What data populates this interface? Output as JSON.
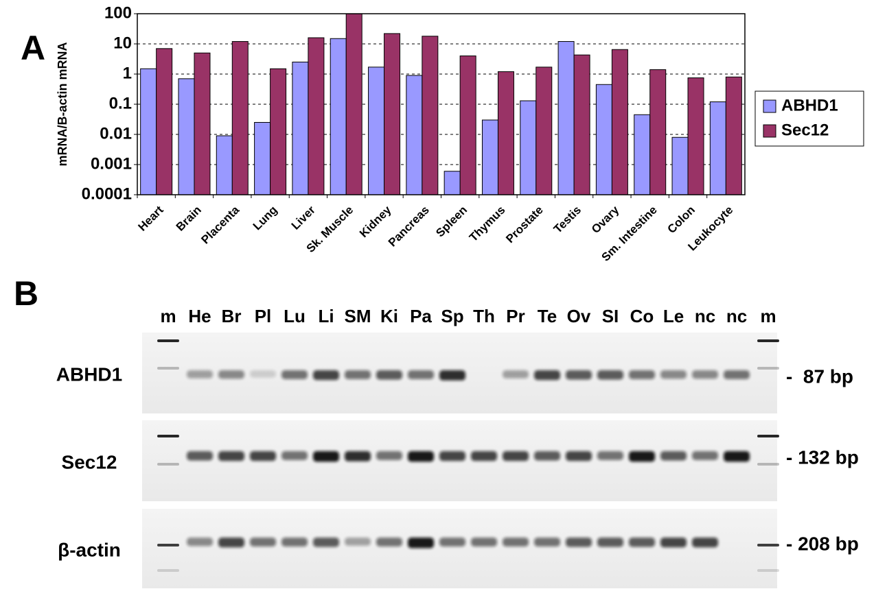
{
  "panel_labels": [
    "A",
    "B"
  ],
  "chart_data": {
    "type": "bar",
    "y_label": "mRNA/B-actin mRNA",
    "log_scale": true,
    "grid": true,
    "legend": "right",
    "categories": [
      "Heart",
      "Brain",
      "Placenta",
      "Lung",
      "Liver",
      "Sk. Muscle",
      "Kidney",
      "Pancreas",
      "Spleen",
      "Thymus",
      "Prostate",
      "Testis",
      "Ovary",
      "Sm. Intestine",
      "Colon",
      "Leukocyte"
    ],
    "series": [
      {
        "name": "ABHD1",
        "color": "#9999ff",
        "values": [
          1.5,
          0.7,
          0.009,
          0.025,
          2.5,
          15,
          1.7,
          0.9,
          0.0006,
          0.03,
          0.13,
          12,
          0.45,
          0.045,
          0.008,
          0.12
        ]
      },
      {
        "name": "Sec12",
        "color": "#993366",
        "values": [
          7,
          5,
          12,
          1.5,
          16,
          100,
          22,
          18,
          4,
          1.2,
          1.7,
          4.3,
          6.5,
          1.4,
          0.75,
          0.8
        ]
      }
    ],
    "ylim": [
      0.0001,
      100
    ],
    "yticks": [
      0.0001,
      0.001,
      0.01,
      0.1,
      1,
      10,
      100
    ]
  },
  "gel": {
    "lanes": [
      "m",
      "He",
      "Br",
      "Pl",
      "Lu",
      "Li",
      "SM",
      "Ki",
      "Pa",
      "Sp",
      "Th",
      "Pr",
      "Te",
      "Ov",
      "SI",
      "Co",
      "Le",
      "nc",
      "nc",
      "m"
    ],
    "rows": [
      {
        "name": "ABHD1",
        "size": "-  87 bp"
      },
      {
        "name": "Sec12",
        "size": "- 132 bp"
      },
      {
        "name": "β-actin",
        "size": "- 208 bp"
      }
    ]
  }
}
